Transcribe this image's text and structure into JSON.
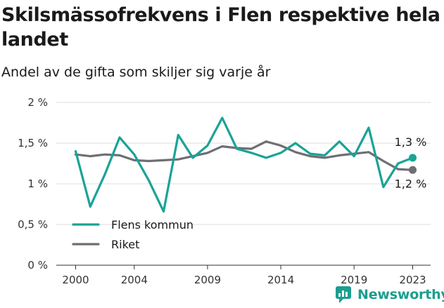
{
  "title": "Skilsmässofrekvens i Flen respektive hela landet",
  "subtitle": "Andel av de gifta som skiljer sig varje år",
  "brand": {
    "name": "Newsworthy",
    "icon": "newsworthy-logo-icon",
    "color": "#1b9e8f"
  },
  "chart_data": {
    "type": "line",
    "x": [
      2000,
      2001,
      2002,
      2003,
      2004,
      2005,
      2006,
      2007,
      2008,
      2009,
      2010,
      2011,
      2012,
      2013,
      2014,
      2015,
      2016,
      2017,
      2018,
      2019,
      2020,
      2021,
      2022,
      2023
    ],
    "series": [
      {
        "name": "Flens kommun",
        "color": "#1aa396",
        "values": [
          1.4,
          0.72,
          1.12,
          1.57,
          1.36,
          1.04,
          0.66,
          1.6,
          1.32,
          1.47,
          1.81,
          1.43,
          1.38,
          1.32,
          1.38,
          1.5,
          1.37,
          1.35,
          1.52,
          1.34,
          1.69,
          0.96,
          1.25,
          1.32
        ],
        "end_label": "1,3 %"
      },
      {
        "name": "Riket",
        "color": "#6e6e73",
        "values": [
          1.36,
          1.34,
          1.36,
          1.35,
          1.29,
          1.28,
          1.29,
          1.3,
          1.34,
          1.38,
          1.46,
          1.44,
          1.43,
          1.52,
          1.47,
          1.39,
          1.34,
          1.32,
          1.35,
          1.37,
          1.39,
          1.28,
          1.18,
          1.17
        ],
        "end_label": "1,2 %"
      }
    ],
    "ylim": [
      0,
      2
    ],
    "yticks": [
      0,
      0.5,
      1,
      1.5,
      2
    ],
    "ytick_labels": [
      "0 %",
      "0,5 %",
      "1 %",
      "1,5 %",
      "2 %"
    ],
    "xticks": [
      2000,
      2004,
      2009,
      2014,
      2019,
      2023
    ],
    "xtick_labels": [
      "2000",
      "2004",
      "2009",
      "2014",
      "2019",
      "2023"
    ],
    "grid": "horizontal",
    "legend": "bottom-left",
    "xlabel": "",
    "ylabel": ""
  }
}
